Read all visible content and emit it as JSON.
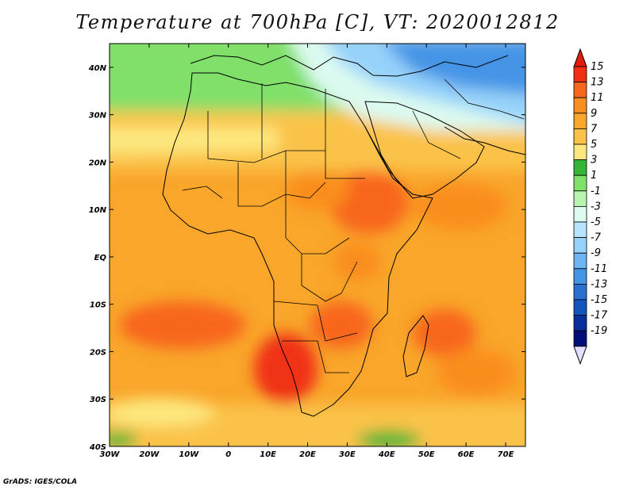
{
  "title": "Temperature at 700hPa [C], VT: 2020012812",
  "credit": "GrADS: IGES/COLA",
  "map": {
    "lon_range": [
      -30,
      75
    ],
    "lat_range": [
      -40,
      45
    ],
    "lon_ticks": [
      {
        "value": -30,
        "label": "30W"
      },
      {
        "value": -20,
        "label": "20W"
      },
      {
        "value": -10,
        "label": "10W"
      },
      {
        "value": 0,
        "label": "0"
      },
      {
        "value": 10,
        "label": "10E"
      },
      {
        "value": 20,
        "label": "20E"
      },
      {
        "value": 30,
        "label": "30E"
      },
      {
        "value": 40,
        "label": "40E"
      },
      {
        "value": 50,
        "label": "50E"
      },
      {
        "value": 60,
        "label": "60E"
      },
      {
        "value": 70,
        "label": "70E"
      }
    ],
    "lat_ticks": [
      {
        "value": 40,
        "label": "40N"
      },
      {
        "value": 30,
        "label": "30N"
      },
      {
        "value": 20,
        "label": "20N"
      },
      {
        "value": 10,
        "label": "10N"
      },
      {
        "value": 0,
        "label": "EQ"
      },
      {
        "value": -10,
        "label": "10S"
      },
      {
        "value": -20,
        "label": "20S"
      },
      {
        "value": -30,
        "label": "30S"
      },
      {
        "value": -40,
        "label": "40S"
      }
    ]
  },
  "colorbar": {
    "levels": [
      "15",
      "13",
      "11",
      "9",
      "7",
      "5",
      "3",
      "1",
      "-1",
      "-3",
      "-5",
      "-7",
      "-9",
      "-11",
      "-13",
      "-15",
      "-17",
      "-19"
    ],
    "colors": [
      "#f03012",
      "#f8661c",
      "#fa8e1e",
      "#f9a62a",
      "#fbc248",
      "#fde87e",
      "#35b53a",
      "#80e06a",
      "#b8f4b0",
      "#dcfaf0",
      "#b8e4ff",
      "#96d2fa",
      "#6cb5f2",
      "#4494e6",
      "#2871d2",
      "#1454be",
      "#0a2da0",
      "#000e78"
    ],
    "top_arrow_color": "#e01e0a",
    "bottom_arrow_color": "#e0e0ff"
  }
}
